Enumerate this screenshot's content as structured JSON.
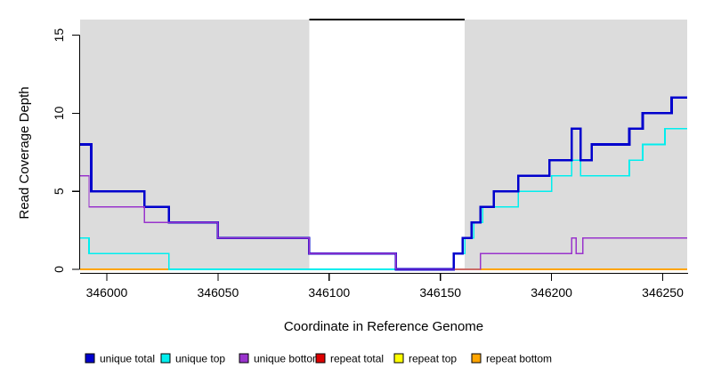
{
  "chart_data": {
    "type": "line",
    "subtype": "step-coverage",
    "title": "",
    "xlabel": "Coordinate in Reference Genome",
    "ylabel": "Read Coverage Depth",
    "xlim": [
      345988,
      346261
    ],
    "ylim": [
      0,
      16
    ],
    "x_ticks": [
      346000,
      346050,
      346100,
      346150,
      346200,
      346250
    ],
    "y_ticks": [
      0,
      5,
      10,
      15
    ],
    "grid": false,
    "shading": {
      "unique_region_color": "#DCDCDC",
      "unique_regions": [
        [
          345988,
          346091
        ],
        [
          346161,
          346261
        ]
      ],
      "repeat_region": [
        346091,
        346161
      ],
      "repeat_marker_y": 16,
      "repeat_marker_color": "#000000"
    },
    "series": [
      {
        "name": "repeat total",
        "color": "#DD0000",
        "width": 1.4,
        "points": [
          [
            345988,
            0
          ]
        ]
      },
      {
        "name": "repeat top",
        "color": "#FFFF00",
        "width": 1.4,
        "points": [
          [
            345988,
            0
          ]
        ]
      },
      {
        "name": "repeat bottom",
        "color": "#FFA500",
        "width": 1.6,
        "points": [
          [
            345988,
            0
          ]
        ]
      },
      {
        "name": "unique top",
        "color": "#00EEEE",
        "width": 1.6,
        "points": [
          [
            345988,
            2
          ],
          [
            345992,
            1
          ],
          [
            346028,
            0
          ],
          [
            346156,
            1
          ],
          [
            346161,
            2
          ],
          [
            346165,
            3
          ],
          [
            346169,
            4
          ],
          [
            346185,
            5
          ],
          [
            346200,
            6
          ],
          [
            346209,
            7
          ],
          [
            346213,
            6
          ],
          [
            346235,
            7
          ],
          [
            346241,
            8
          ],
          [
            346251,
            9
          ]
        ]
      },
      {
        "name": "unique total",
        "color": "#0000CD",
        "width": 2.6,
        "points": [
          [
            345988,
            8
          ],
          [
            345993,
            5
          ],
          [
            346017,
            4
          ],
          [
            346028,
            3
          ],
          [
            346050,
            2
          ],
          [
            346091,
            1
          ],
          [
            346130,
            0
          ],
          [
            346156,
            1
          ],
          [
            346160,
            2
          ],
          [
            346164,
            3
          ],
          [
            346168,
            4
          ],
          [
            346174,
            5
          ],
          [
            346185,
            6
          ],
          [
            346199,
            7
          ],
          [
            346209,
            9
          ],
          [
            346213,
            7
          ],
          [
            346218,
            8
          ],
          [
            346235,
            9
          ],
          [
            346241,
            10
          ],
          [
            346254,
            11
          ]
        ]
      },
      {
        "name": "unique bottom",
        "color": "#9933CC",
        "width": 1.4,
        "points": [
          [
            345988,
            6
          ],
          [
            345992,
            4
          ],
          [
            346017,
            3
          ],
          [
            346050,
            2
          ],
          [
            346091,
            1
          ],
          [
            346130,
            0
          ],
          [
            346168,
            1
          ],
          [
            346209,
            2
          ],
          [
            346211,
            1
          ],
          [
            346214,
            2
          ]
        ]
      }
    ],
    "legend": {
      "position": "bottom",
      "items": [
        {
          "label": "unique total",
          "color": "#0000CD"
        },
        {
          "label": "unique top",
          "color": "#00EEEE"
        },
        {
          "label": "unique bottom",
          "color": "#9933CC"
        },
        {
          "label": "repeat total",
          "color": "#DD0000"
        },
        {
          "label": "repeat top",
          "color": "#FFFF00"
        },
        {
          "label": "repeat bottom",
          "color": "#FFA500"
        }
      ]
    }
  },
  "layout_text": {
    "xlabel": "Coordinate in Reference Genome",
    "ylabel": "Read Coverage Depth"
  }
}
